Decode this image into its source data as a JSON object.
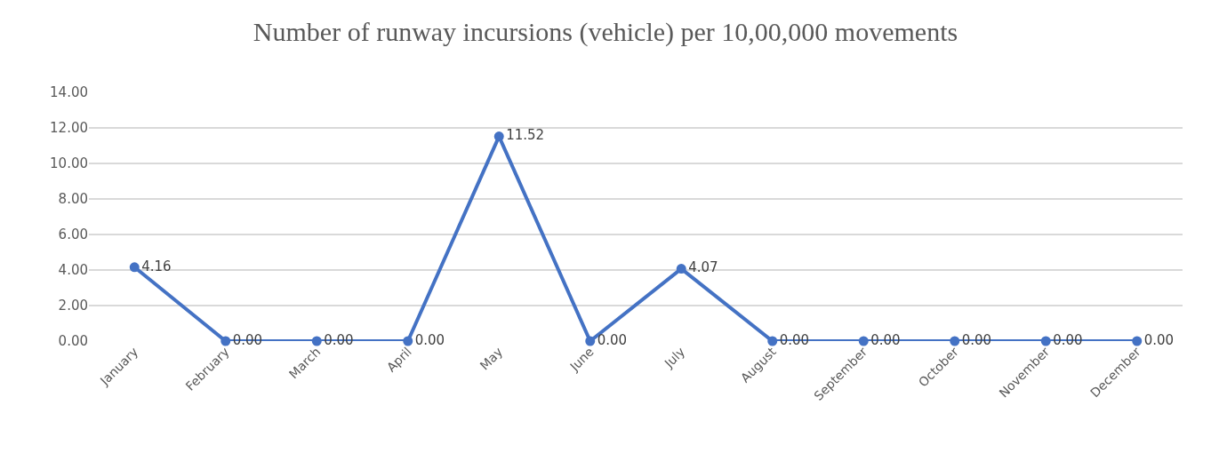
{
  "chart_data": {
    "type": "line",
    "title": "Number of runway incursions (vehicle) per 10,00,000 movements",
    "categories": [
      "January",
      "February",
      "March",
      "April",
      "May",
      "June",
      "July",
      "August",
      "September",
      "October",
      "November",
      "December"
    ],
    "series": [
      {
        "color": "#4472c4",
        "values": [
          4.16,
          0,
          0,
          0,
          11.52,
          0,
          4.07,
          0,
          0,
          0,
          0,
          0
        ],
        "value_labels": [
          "4.16",
          "0.00",
          "0.00",
          "0.00",
          "11.52",
          "0.00",
          "4.07",
          "0.00",
          "0.00",
          "0.00",
          "0.00",
          "0.00"
        ]
      }
    ],
    "ylim": [
      0,
      14
    ],
    "yticks": [
      {
        "value": 0,
        "label": "0.00"
      },
      {
        "value": 2,
        "label": "2.00"
      },
      {
        "value": 4,
        "label": "4.00"
      },
      {
        "value": 6,
        "label": "6.00"
      },
      {
        "value": 8,
        "label": "8.00"
      },
      {
        "value": 10,
        "label": "10.00"
      },
      {
        "value": 12,
        "label": "12.00"
      },
      {
        "value": 14,
        "label": "14.00"
      }
    ],
    "grid": "y",
    "marker": "circle",
    "line_style": "solid"
  }
}
